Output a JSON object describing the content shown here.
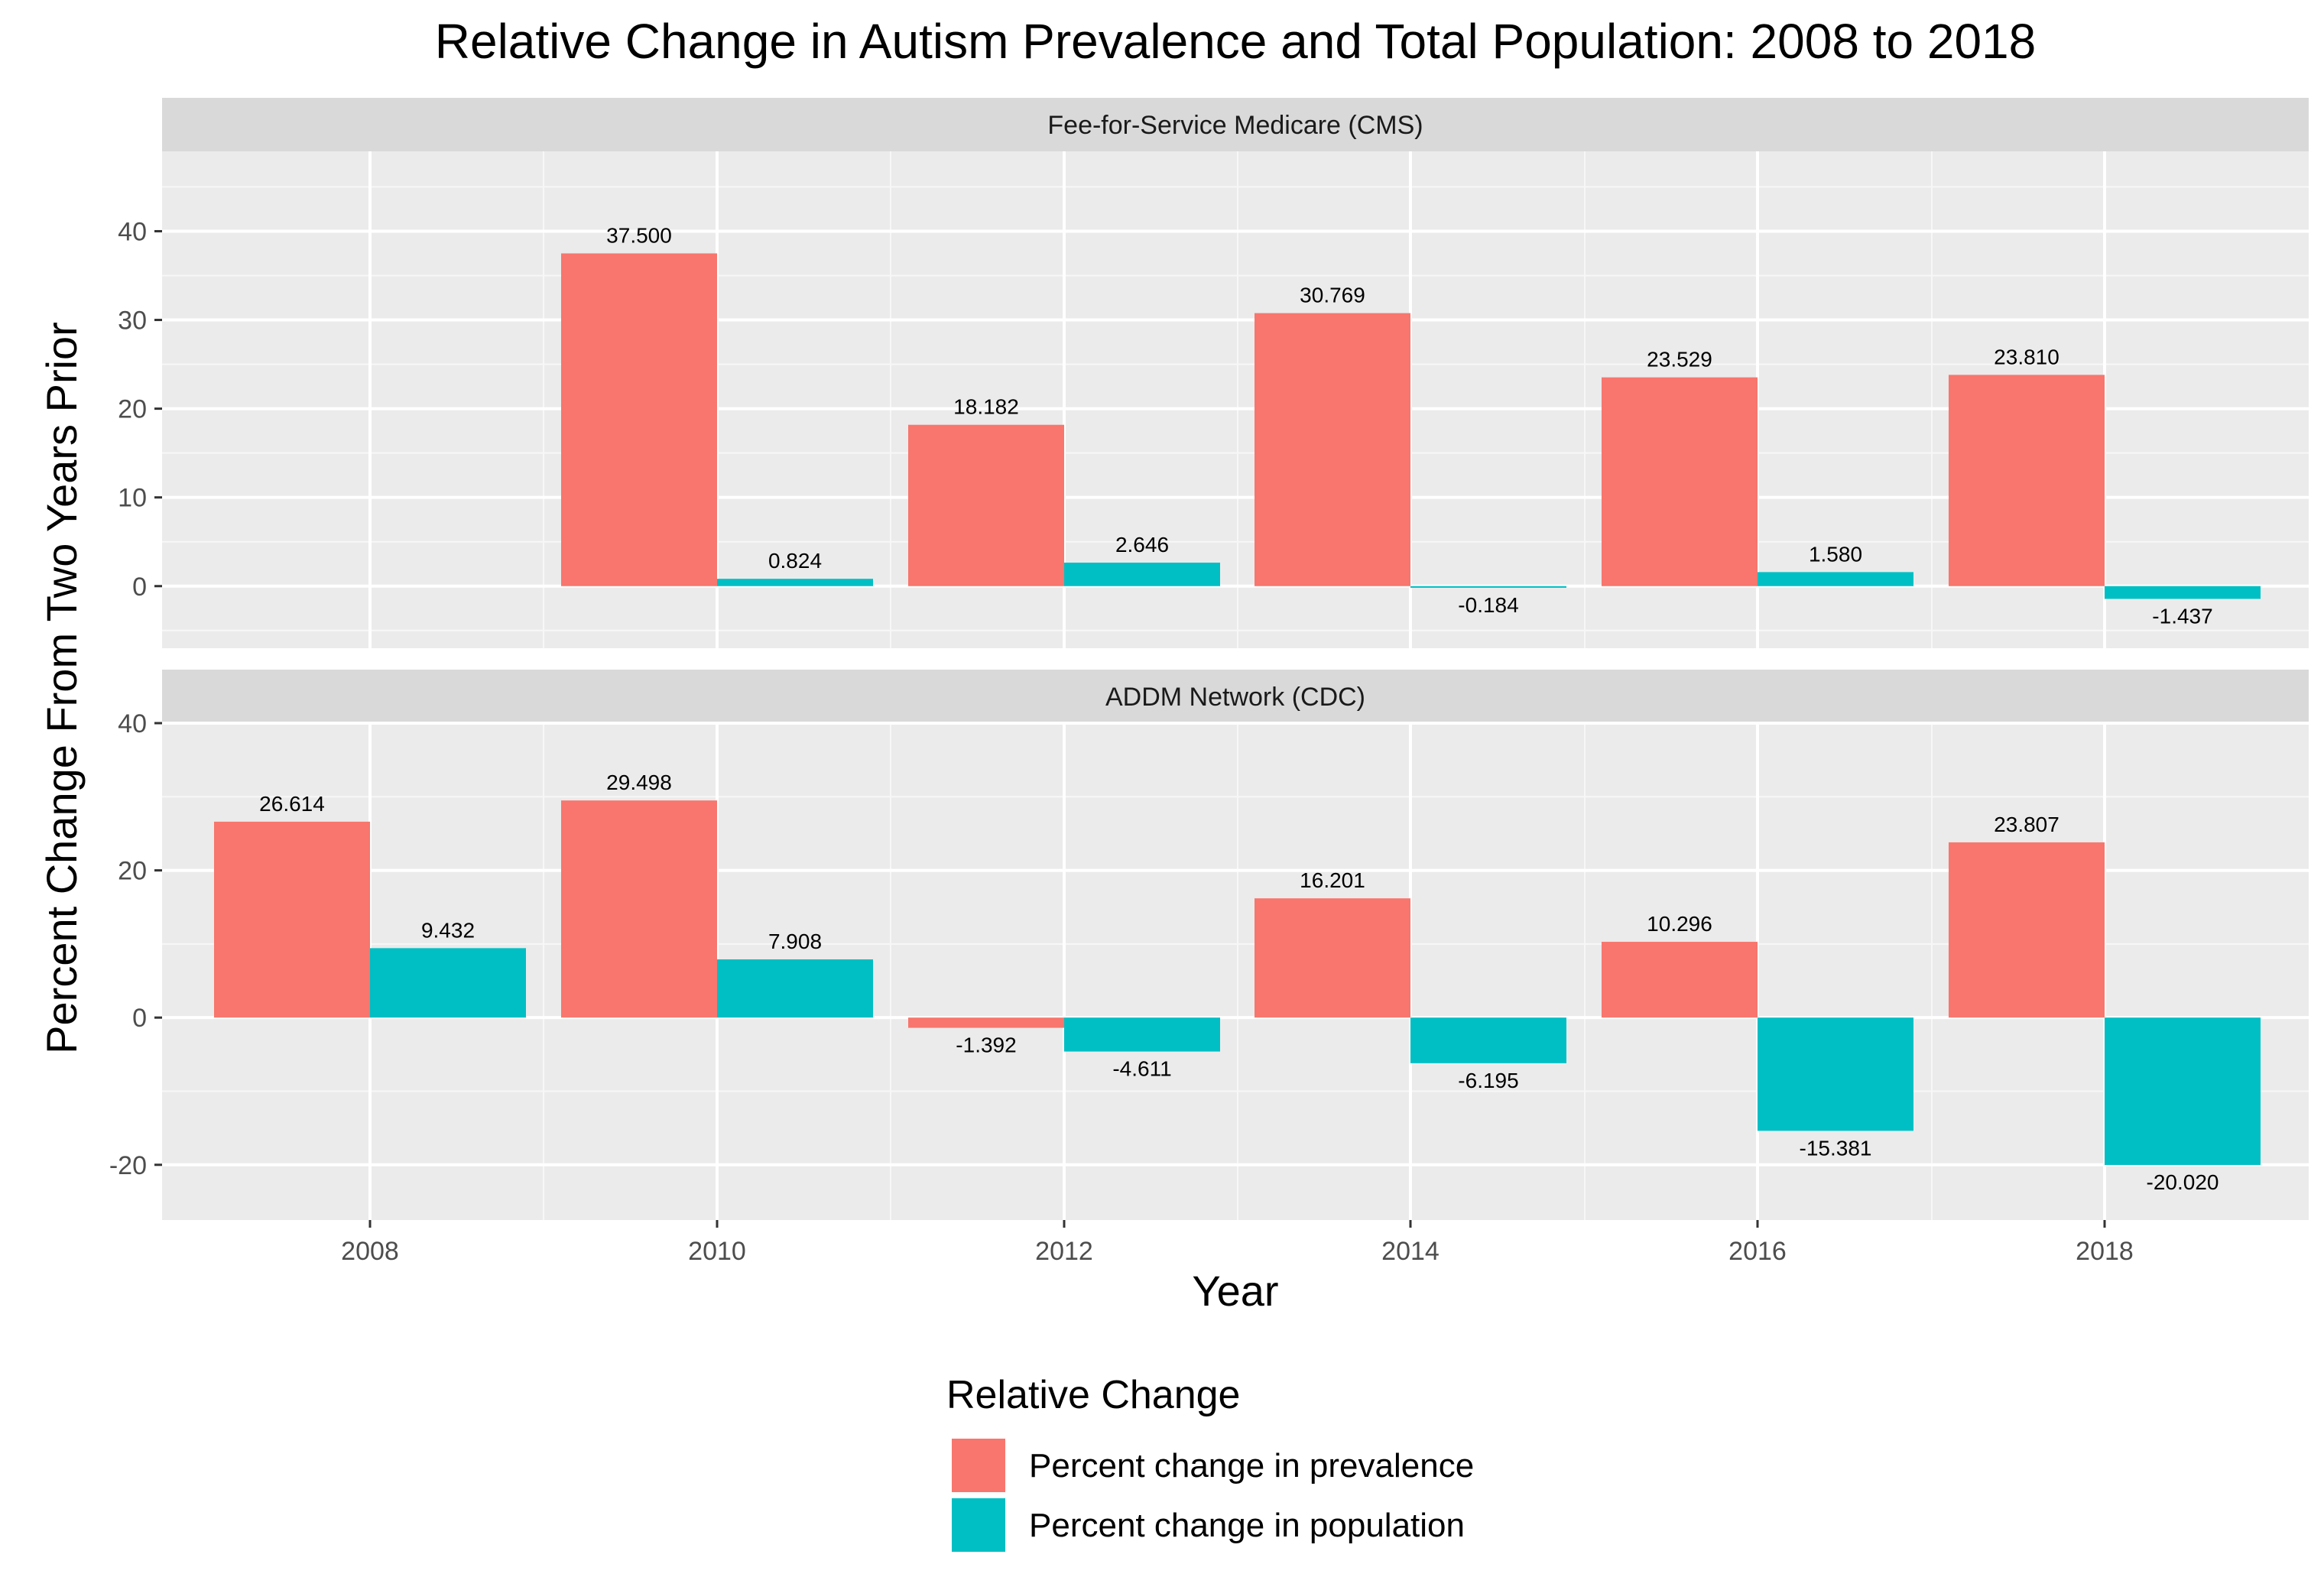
{
  "chart_data": {
    "type": "bar",
    "title": "Relative Change in Autism Prevalence and Total Population: 2008 to 2018",
    "xlabel": "Year",
    "ylabel": "Percent Change From Two Years Prior",
    "x_ticks": [
      "2008",
      "2010",
      "2012",
      "2014",
      "2016",
      "2018"
    ],
    "grid": true,
    "legend": {
      "title": "Relative Change",
      "position": "bottom",
      "entries": [
        {
          "key": "prevalence",
          "label": "Percent change in prevalence",
          "color": "#F8766D"
        },
        {
          "key": "population",
          "label": "Percent change in population",
          "color": "#00BFC4"
        }
      ]
    },
    "panels": [
      {
        "strip": "Fee-for-Service Medicare (CMS)",
        "ylim": [
          -7,
          49
        ],
        "y_ticks": [
          0,
          10,
          20,
          30,
          40
        ],
        "prevalence": [
          {
            "year": 2010,
            "value": 37.5,
            "label": "37.500"
          },
          {
            "year": 2012,
            "value": 18.182,
            "label": "18.182"
          },
          {
            "year": 2014,
            "value": 30.769,
            "label": "30.769"
          },
          {
            "year": 2016,
            "value": 23.529,
            "label": "23.529"
          },
          {
            "year": 2018,
            "value": 23.81,
            "label": "23.810"
          }
        ],
        "population": [
          {
            "year": 2010,
            "value": 0.824,
            "label": "0.824"
          },
          {
            "year": 2012,
            "value": 2.646,
            "label": "2.646"
          },
          {
            "year": 2014,
            "value": -0.184,
            "label": "-0.184"
          },
          {
            "year": 2016,
            "value": 1.58,
            "label": "1.580"
          },
          {
            "year": 2018,
            "value": -1.437,
            "label": "-1.437"
          }
        ]
      },
      {
        "strip": "ADDM Network (CDC)",
        "ylim": [
          -27.5,
          40
        ],
        "y_ticks": [
          -20,
          0,
          20,
          40
        ],
        "prevalence": [
          {
            "year": 2008,
            "value": 26.614,
            "label": "26.614"
          },
          {
            "year": 2010,
            "value": 29.498,
            "label": "29.498"
          },
          {
            "year": 2012,
            "value": -1.392,
            "label": "-1.392"
          },
          {
            "year": 2014,
            "value": 16.201,
            "label": "16.201"
          },
          {
            "year": 2016,
            "value": 10.296,
            "label": "10.296"
          },
          {
            "year": 2018,
            "value": 23.807,
            "label": "23.807"
          }
        ],
        "population": [
          {
            "year": 2008,
            "value": 9.432,
            "label": "9.432"
          },
          {
            "year": 2010,
            "value": 7.908,
            "label": "7.908"
          },
          {
            "year": 2012,
            "value": -4.611,
            "label": "-4.611"
          },
          {
            "year": 2014,
            "value": -6.195,
            "label": "-6.195"
          },
          {
            "year": 2016,
            "value": -15.381,
            "label": "-15.381"
          },
          {
            "year": 2018,
            "value": -20.02,
            "label": "-20.020"
          }
        ]
      }
    ]
  }
}
